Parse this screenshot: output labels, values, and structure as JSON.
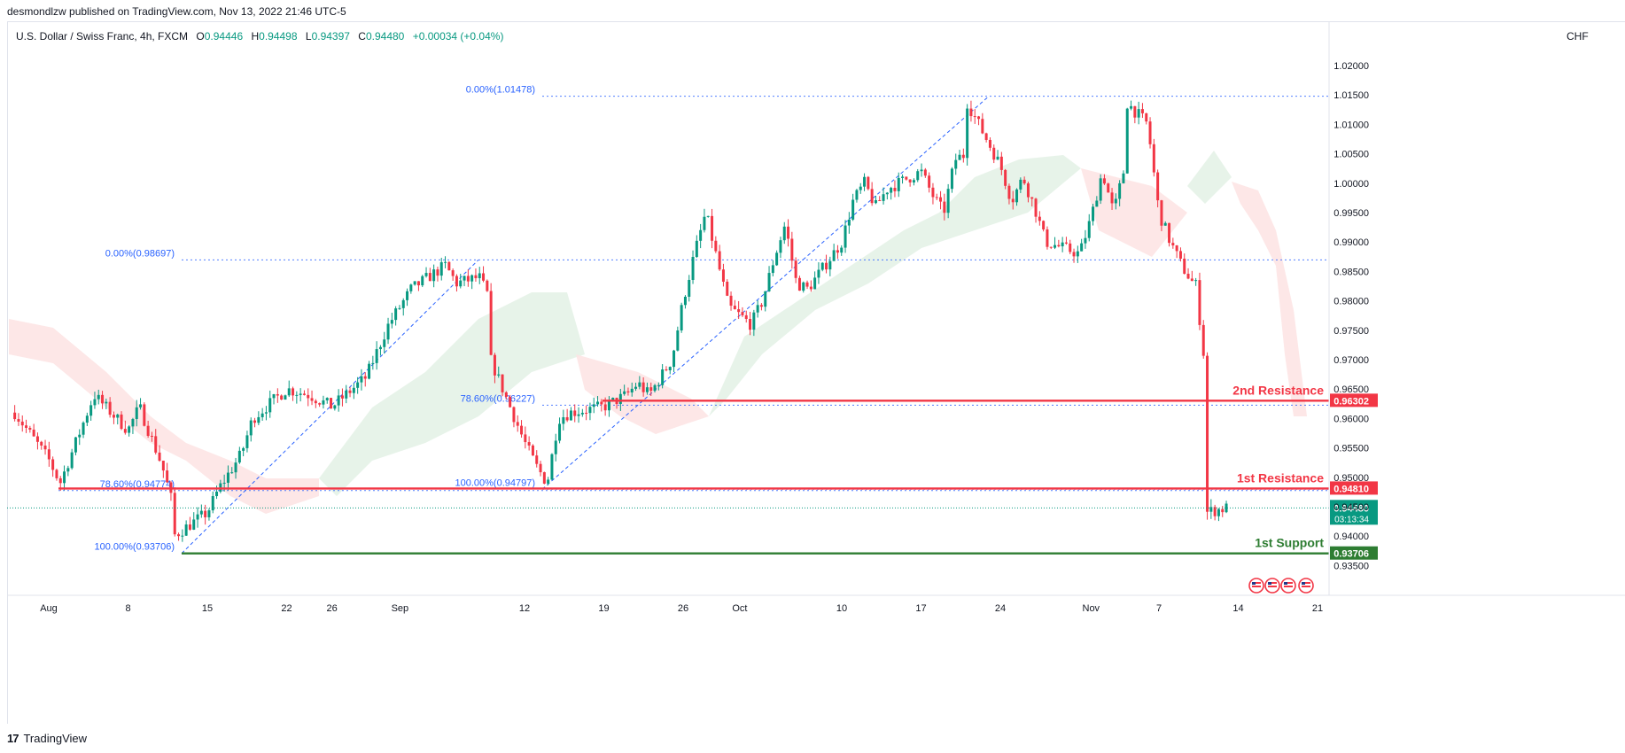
{
  "header": {
    "published": "desmondlzw published on TradingView.com, Nov 13, 2022 21:46 UTC-5",
    "symbol": "U.S. Dollar / Swiss Franc, 4h, FXCM",
    "open_label": "O",
    "open": "0.94446",
    "high_label": "H",
    "high": "0.94498",
    "low_label": "L",
    "low": "0.94397",
    "close_label": "C",
    "close": "0.94480",
    "change": "+0.00034 (+0.04%)",
    "currency": "CHF"
  },
  "footer": {
    "brand": "TradingView",
    "logo": "17"
  },
  "colors": {
    "up": "#089981",
    "down": "#f23645",
    "resistance": "#f23645",
    "support": "#2e7d32",
    "fib": "#2962ff",
    "cloud_up": "#e4f2e7",
    "cloud_down": "#fde4e4"
  },
  "chart_data": {
    "type": "candlestick",
    "symbol": "USDCHF",
    "timeframe": "4h",
    "ylim": [
      0.932,
      1.024
    ],
    "y_ticks": [
      1.02,
      1.015,
      1.01,
      1.005,
      1.0,
      0.995,
      0.99,
      0.985,
      0.98,
      0.975,
      0.97,
      0.965,
      0.96,
      0.955,
      0.95,
      0.945,
      0.94,
      0.935
    ],
    "x_ticks": [
      "Aug",
      "8",
      "15",
      "22",
      "26",
      "Sep",
      "12",
      "19",
      "26",
      "Oct",
      "10",
      "17",
      "24",
      "Nov",
      "7",
      "14",
      "21"
    ],
    "price_path": [
      [
        "2022-07-29",
        0.961
      ],
      [
        "2022-08-01",
        0.953
      ],
      [
        "2022-08-02",
        0.949
      ],
      [
        "2022-08-04",
        0.959
      ],
      [
        "2022-08-05",
        0.964
      ],
      [
        "2022-08-08",
        0.958
      ],
      [
        "2022-08-09",
        0.962
      ],
      [
        "2022-08-11",
        0.952
      ],
      [
        "2022-08-12",
        0.945
      ],
      [
        "2022-08-12",
        0.94
      ],
      [
        "2022-08-15",
        0.944
      ],
      [
        "2022-08-16",
        0.948
      ],
      [
        "2022-08-18",
        0.954
      ],
      [
        "2022-08-19",
        0.96
      ],
      [
        "2022-08-22",
        0.965
      ],
      [
        "2022-08-24",
        0.964
      ],
      [
        "2022-08-26",
        0.962
      ],
      [
        "2022-08-29",
        0.967
      ],
      [
        "2022-08-31",
        0.976
      ],
      [
        "2022-09-02",
        0.982
      ],
      [
        "2022-09-05",
        0.986
      ],
      [
        "2022-09-06",
        0.983
      ],
      [
        "2022-09-08",
        0.984
      ],
      [
        "2022-09-09",
        0.98
      ],
      [
        "2022-09-09",
        0.97
      ],
      [
        "2022-09-12",
        0.956
      ],
      [
        "2022-09-13",
        0.952
      ],
      [
        "2022-09-14",
        0.949
      ],
      [
        "2022-09-15",
        0.96
      ],
      [
        "2022-09-16",
        0.961
      ],
      [
        "2022-09-19",
        0.962
      ],
      [
        "2022-09-20",
        0.963
      ],
      [
        "2022-09-21",
        0.964
      ],
      [
        "2022-09-22",
        0.966
      ],
      [
        "2022-09-23",
        0.964
      ],
      [
        "2022-09-25",
        0.97
      ],
      [
        "2022-09-26",
        0.98
      ],
      [
        "2022-09-27",
        0.988
      ],
      [
        "2022-09-28",
        0.995
      ],
      [
        "2022-09-29",
        0.987
      ],
      [
        "2022-09-30",
        0.979
      ],
      [
        "2022-10-02",
        0.976
      ],
      [
        "2022-10-03",
        0.98
      ],
      [
        "2022-10-04",
        0.987
      ],
      [
        "2022-10-05",
        0.993
      ],
      [
        "2022-10-06",
        0.983
      ],
      [
        "2022-10-07",
        0.982
      ],
      [
        "2022-10-10",
        0.99
      ],
      [
        "2022-10-11",
        0.997
      ],
      [
        "2022-10-12",
        1.0
      ],
      [
        "2022-10-13",
        0.996
      ],
      [
        "2022-10-14",
        0.999
      ],
      [
        "2022-10-17",
        1.002
      ],
      [
        "2022-10-18",
        0.998
      ],
      [
        "2022-10-19",
        0.995
      ],
      [
        "2022-10-20",
        1.004
      ],
      [
        "2022-10-21",
        1.005
      ],
      [
        "2022-10-21",
        1.014
      ],
      [
        "2022-10-24",
        1.003
      ],
      [
        "2022-10-25",
        0.997
      ],
      [
        "2022-10-26",
        1.001
      ],
      [
        "2022-10-27",
        0.996
      ],
      [
        "2022-10-28",
        0.99
      ],
      [
        "2022-10-31",
        0.988
      ],
      [
        "2022-11-01",
        0.994
      ],
      [
        "2022-11-02",
        1.002
      ],
      [
        "2022-11-03",
        0.995
      ],
      [
        "2022-11-04",
        1.003
      ],
      [
        "2022-11-04",
        1.014
      ],
      [
        "2022-11-06",
        1.01
      ],
      [
        "2022-11-07",
        0.995
      ],
      [
        "2022-11-08",
        0.99
      ],
      [
        "2022-11-09",
        0.986
      ],
      [
        "2022-11-10",
        0.983
      ],
      [
        "2022-11-10",
        0.987
      ],
      [
        "2022-11-11",
        0.97
      ],
      [
        "2022-11-11",
        0.96
      ],
      [
        "2022-11-11",
        0.944
      ],
      [
        "2022-11-13",
        0.9448
      ]
    ],
    "horizontal_levels": [
      {
        "label": "2nd Resistance",
        "value": "0.96302",
        "kind": "resistance"
      },
      {
        "label": "1st Resistance",
        "value": "0.94810",
        "kind": "resistance"
      },
      {
        "label": "1st Support",
        "value": "0.93706",
        "kind": "support"
      }
    ],
    "fib_retracements": [
      {
        "label": "0.00%(0.98697)",
        "price": 0.98697
      },
      {
        "label": "78.60%(0.94774)",
        "price": 0.94774
      },
      {
        "label": "100.00%(0.93706)",
        "price": 0.93706
      },
      {
        "label": "0.00%(1.01478)",
        "price": 1.01478
      },
      {
        "label": "78.60%(0.96227)",
        "price": 0.96227
      },
      {
        "label": "100.00%(0.94797)",
        "price": 0.94797
      }
    ],
    "last_price": {
      "value": "0.94480",
      "countdown": "03:13:34"
    }
  }
}
